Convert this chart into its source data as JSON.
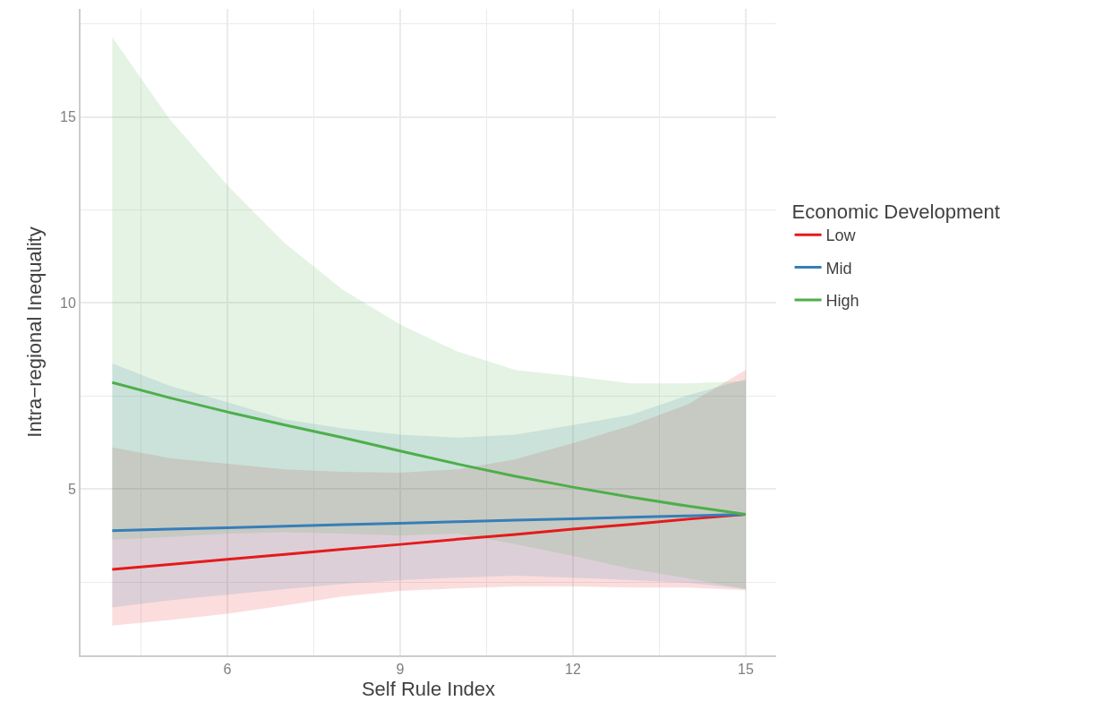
{
  "chart_data": {
    "type": "line",
    "xlabel": "Self Rule Index",
    "ylabel": "Intra−regional Inequality",
    "legend_title": "Economic Development",
    "x": [
      4,
      5,
      6,
      7,
      8,
      9,
      10,
      11,
      12,
      13,
      14,
      15
    ],
    "series": [
      {
        "name": "Low",
        "color": "#e41a1c",
        "values": [
          2.84,
          2.97,
          3.11,
          3.24,
          3.38,
          3.51,
          3.65,
          3.78,
          3.92,
          4.05,
          4.19,
          4.32
        ],
        "lower": [
          1.33,
          1.48,
          1.65,
          1.87,
          2.11,
          2.26,
          2.33,
          2.38,
          2.38,
          2.35,
          2.35,
          2.28
        ],
        "upper": [
          6.12,
          5.83,
          5.68,
          5.53,
          5.46,
          5.44,
          5.53,
          5.8,
          6.23,
          6.7,
          7.28,
          8.2
        ]
      },
      {
        "name": "Mid",
        "color": "#377eb8",
        "values": [
          3.88,
          3.92,
          3.96,
          4.0,
          4.04,
          4.08,
          4.12,
          4.16,
          4.2,
          4.24,
          4.28,
          4.32
        ],
        "lower": [
          1.82,
          2.01,
          2.16,
          2.31,
          2.45,
          2.55,
          2.62,
          2.67,
          2.62,
          2.55,
          2.48,
          2.31
        ],
        "upper": [
          8.37,
          7.77,
          7.33,
          6.87,
          6.63,
          6.46,
          6.38,
          6.46,
          6.72,
          6.99,
          7.52,
          7.95
        ]
      },
      {
        "name": "High",
        "color": "#4daf4a",
        "values": [
          7.86,
          7.45,
          7.07,
          6.72,
          6.38,
          6.02,
          5.67,
          5.34,
          5.05,
          4.78,
          4.54,
          4.32
        ],
        "lower": [
          3.64,
          3.71,
          3.8,
          3.84,
          3.8,
          3.75,
          3.8,
          3.52,
          3.2,
          2.86,
          2.6,
          2.31
        ],
        "upper": [
          17.14,
          14.93,
          13.16,
          11.6,
          10.36,
          9.42,
          8.69,
          8.2,
          8.03,
          7.84,
          7.84,
          7.9
        ]
      }
    ],
    "xlim": [
      3.45,
      15.53
    ],
    "ylim": [
      0.53,
      17.9
    ],
    "xticks": [
      6,
      9,
      12,
      15
    ],
    "yticks": [
      5,
      10,
      15
    ],
    "grid": true,
    "legend": "right",
    "line_style": "solid",
    "marker": "none"
  }
}
